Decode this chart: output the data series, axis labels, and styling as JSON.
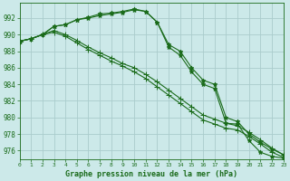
{
  "title": "Graphe pression niveau de la mer (hPa)",
  "background_color": "#cce9e9",
  "grid_color": "#aacccc",
  "line_color": "#1a6b1a",
  "x_ticks": [
    0,
    1,
    2,
    3,
    4,
    5,
    6,
    7,
    8,
    9,
    10,
    11,
    12,
    13,
    14,
    15,
    16,
    17,
    18,
    19,
    20,
    21,
    22,
    23
  ],
  "y_ticks": [
    976,
    978,
    980,
    982,
    984,
    986,
    988,
    990,
    992
  ],
  "ylim": [
    975.0,
    993.8
  ],
  "xlim": [
    0,
    23
  ],
  "series": [
    [
      989.2,
      989.5,
      990.0,
      991.0,
      991.2,
      991.8,
      992.0,
      992.3,
      992.5,
      992.7,
      993.0,
      992.8,
      991.5,
      988.5,
      987.5,
      985.5,
      984.0,
      983.5,
      979.3,
      979.2,
      977.2,
      975.8,
      975.3,
      975.1
    ],
    [
      989.2,
      989.5,
      990.0,
      991.0,
      991.2,
      991.8,
      992.1,
      992.5,
      992.6,
      992.8,
      993.1,
      992.8,
      991.5,
      988.8,
      988.0,
      986.0,
      984.5,
      984.0,
      980.0,
      979.5,
      978.0,
      977.0,
      976.2,
      975.5
    ],
    [
      989.2,
      989.5,
      990.0,
      990.5,
      990.0,
      989.3,
      988.5,
      987.8,
      987.2,
      986.5,
      986.0,
      985.2,
      984.3,
      983.3,
      982.3,
      981.3,
      980.3,
      979.8,
      979.3,
      979.0,
      978.2,
      977.3,
      976.3,
      975.5
    ],
    [
      989.2,
      989.5,
      990.0,
      990.3,
      989.8,
      989.0,
      988.2,
      987.5,
      986.8,
      986.2,
      985.5,
      984.7,
      983.7,
      982.7,
      981.7,
      980.7,
      979.7,
      979.2,
      978.7,
      978.5,
      977.7,
      976.8,
      975.8,
      975.2
    ]
  ],
  "markers": [
    "*",
    "*",
    "+",
    "+"
  ],
  "markersizes": [
    3.5,
    3.5,
    5,
    5
  ]
}
